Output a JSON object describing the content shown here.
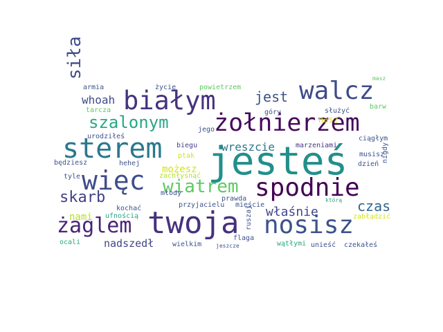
{
  "words": [
    {
      "text": "jesteś",
      "color": "#218f8c",
      "rotated": false
    },
    {
      "text": "twoja",
      "color": "#46317e",
      "rotated": false
    },
    {
      "text": "spodnie",
      "color": "#440154",
      "rotated": false
    },
    {
      "text": "żołnierzem",
      "color": "#450a5c",
      "rotated": false
    },
    {
      "text": "walcz",
      "color": "#3e4a89",
      "rotated": false
    },
    {
      "text": "nosisz",
      "color": "#3b528b",
      "rotated": false
    },
    {
      "text": "białym",
      "color": "#46327e",
      "rotated": false
    },
    {
      "text": "sterem",
      "color": "#2a788e",
      "rotated": false
    },
    {
      "text": "więc",
      "color": "#3e4c8a",
      "rotated": false
    },
    {
      "text": "żaglem",
      "color": "#482475",
      "rotated": false
    },
    {
      "text": "wiatrem",
      "color": "#5ec962",
      "rotated": false
    },
    {
      "text": "szalonym",
      "color": "#26a784",
      "rotated": false
    },
    {
      "text": "siła",
      "color": "#3d4e8a",
      "rotated": true
    },
    {
      "text": "skarb",
      "color": "#424186",
      "rotated": false
    },
    {
      "text": "jest",
      "color": "#3b528b",
      "rotated": false
    },
    {
      "text": "czas",
      "color": "#32658e",
      "rotated": false
    },
    {
      "text": "właśnie",
      "color": "#3f4788",
      "rotated": false
    },
    {
      "text": "whoah",
      "color": "#3e4c8a",
      "rotated": false
    },
    {
      "text": "wreszcie",
      "color": "#2a788e",
      "rotated": false
    },
    {
      "text": "możesz",
      "color": "#d5e21a",
      "rotated": false
    },
    {
      "text": "nadszedł",
      "color": "#414487",
      "rotated": false
    },
    {
      "text": "nami",
      "color": "#b5de2b",
      "rotated": false
    },
    {
      "text": "nasz",
      "color": "#d5e21a",
      "rotated": false
    },
    {
      "text": "marzeniami",
      "color": "#453581",
      "rotated": false
    },
    {
      "text": "ciągłym",
      "color": "#3b528b",
      "rotated": false
    },
    {
      "text": "musisz",
      "color": "#3b528b",
      "rotated": false
    },
    {
      "text": "dzień",
      "color": "#3b528b",
      "rotated": false
    },
    {
      "text": "nigdy",
      "color": "#3b528b",
      "rotated": true
    },
    {
      "text": "będziesz",
      "color": "#3b528b",
      "rotated": false
    },
    {
      "text": "hehej",
      "color": "#3b528b",
      "rotated": false
    },
    {
      "text": "biegu",
      "color": "#433e85",
      "rotated": false
    },
    {
      "text": "młody",
      "color": "#3b528b",
      "rotated": false
    },
    {
      "text": "zachłysnąć",
      "color": "#b5de2b",
      "rotated": false
    },
    {
      "text": "prawda",
      "color": "#3b528b",
      "rotated": false
    },
    {
      "text": "tyle",
      "color": "#3b528b",
      "rotated": false
    },
    {
      "text": "kochać",
      "color": "#3b528b",
      "rotated": false
    },
    {
      "text": "przyjacielu",
      "color": "#3b528b",
      "rotated": false
    },
    {
      "text": "mieście",
      "color": "#3b528b",
      "rotated": false
    },
    {
      "text": "którą",
      "color": "#26a784",
      "rotated": false
    },
    {
      "text": "zabłądzić",
      "color": "#d5e21a",
      "rotated": false
    },
    {
      "text": "ufnością",
      "color": "#26a784",
      "rotated": false
    },
    {
      "text": "flaga",
      "color": "#3b528b",
      "rotated": false
    },
    {
      "text": "ruszaj",
      "color": "#3b528b",
      "rotated": true
    },
    {
      "text": "ocali",
      "color": "#26a784",
      "rotated": false
    },
    {
      "text": "wielkim",
      "color": "#3b528b",
      "rotated": false
    },
    {
      "text": "jeszcze",
      "color": "#3b528b",
      "rotated": false
    },
    {
      "text": "wątłymi",
      "color": "#26a784",
      "rotated": false
    },
    {
      "text": "unieść",
      "color": "#3b528b",
      "rotated": false
    },
    {
      "text": "czekałeś",
      "color": "#3b528b",
      "rotated": false
    },
    {
      "text": "armia",
      "color": "#3b528b",
      "rotated": false
    },
    {
      "text": "życie",
      "color": "#3b528b",
      "rotated": false
    },
    {
      "text": "powietrzem",
      "color": "#5ec962",
      "rotated": false
    },
    {
      "text": "masz",
      "color": "#5ec962",
      "rotated": false
    },
    {
      "text": "barw",
      "color": "#5ec962",
      "rotated": false
    },
    {
      "text": "służyć",
      "color": "#3b528b",
      "rotated": false
    },
    {
      "text": "góry",
      "color": "#3b528b",
      "rotated": false
    },
    {
      "text": "tarcza",
      "color": "#5ec962",
      "rotated": false
    },
    {
      "text": "urodziłeś",
      "color": "#3b528b",
      "rotated": false
    },
    {
      "text": "jego",
      "color": "#3b528b",
      "rotated": false
    },
    {
      "text": "ptak",
      "color": "#d5e21a",
      "rotated": false
    }
  ]
}
